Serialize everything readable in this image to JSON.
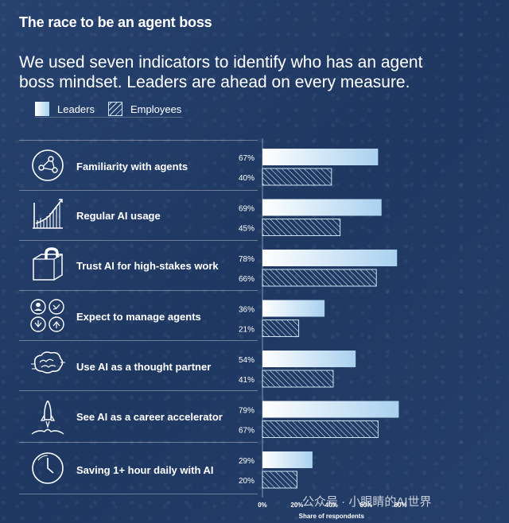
{
  "title": "The race to be an agent boss",
  "subtitle": "We used seven indicators to identify who has an agent boss mindset. Leaders are ahead on every measure.",
  "legend": {
    "leaders": "Leaders",
    "employees": "Employees"
  },
  "colors": {
    "background": "#223c66",
    "leaders_start": "#ffffff",
    "leaders_end": "#a9d1ef",
    "employees_hatch": "#cfe2f5"
  },
  "watermark": "公众号 · 小眼睛的AI世界",
  "rows": [
    {
      "label": "Familiarity with agents",
      "icon": "network-icon"
    },
    {
      "label": "Regular AI usage",
      "icon": "growth-chart-icon"
    },
    {
      "label": "Trust AI for high-stakes work",
      "icon": "unlocked-padlock-icon"
    },
    {
      "label": "Expect to manage agents",
      "icon": "team-agents-icon"
    },
    {
      "label": "Use AI as a thought partner",
      "icon": "brain-icon"
    },
    {
      "label": "See AI as a career accelerator",
      "icon": "rocket-icon"
    },
    {
      "label": "Saving 1+ hour daily with AI",
      "icon": "clock-icon"
    }
  ],
  "chart_data": {
    "type": "bar",
    "orientation": "horizontal",
    "categories": [
      "Familiarity with agents",
      "Regular AI usage",
      "Trust AI for high-stakes work",
      "Expect to manage agents",
      "Use AI as a thought partner",
      "See AI as a career accelerator",
      "Saving 1+ hour daily with AI"
    ],
    "series": [
      {
        "name": "Leaders",
        "values": [
          67,
          69,
          78,
          36,
          54,
          79,
          29
        ],
        "labels": [
          "67%",
          "69%",
          "78%",
          "36%",
          "54%",
          "79%",
          "29%"
        ]
      },
      {
        "name": "Employees",
        "values": [
          40,
          45,
          66,
          21,
          41,
          67,
          20
        ],
        "labels": [
          "40%",
          "45%",
          "66%",
          "21%",
          "41%",
          "67%",
          "20%"
        ]
      }
    ],
    "xlim": [
      0,
      80
    ],
    "xticks": [
      "0%",
      "20%",
      "40%",
      "60%",
      "80%"
    ],
    "xlabel": "Share of respondents",
    "legend_position": "top-left",
    "grid": false
  }
}
